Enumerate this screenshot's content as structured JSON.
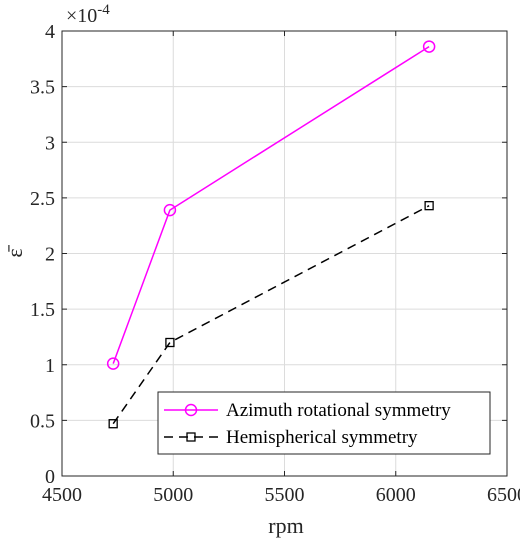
{
  "chart_data": {
    "type": "line",
    "title": "",
    "xlabel": "rpm",
    "ylabel": "ε̄",
    "y_exponent_label": "×10",
    "y_exponent_power": "-4",
    "xlim": [
      4500,
      6500
    ],
    "ylim": [
      0,
      4
    ],
    "xticks": [
      4500,
      5000,
      5500,
      6000,
      6500
    ],
    "yticks": [
      0,
      0.5,
      1,
      1.5,
      2,
      2.5,
      3,
      3.5,
      4
    ],
    "xtick_labels": [
      "4500",
      "5000",
      "5500",
      "6000",
      "6500"
    ],
    "ytick_labels": [
      "0",
      "0.5",
      "1",
      "1.5",
      "2",
      "2.5",
      "3",
      "3.5",
      "4"
    ],
    "grid": true,
    "legend_position": "bottom-right",
    "series": [
      {
        "name": "Azimuth rotational symmetry",
        "x": [
          4730,
          4985,
          6150
        ],
        "y": [
          1.01,
          2.39,
          3.86
        ],
        "color": "#ff00ff",
        "line_style": "solid",
        "marker": "circle"
      },
      {
        "name": "Hemispherical symmetry",
        "x": [
          4730,
          4985,
          6150
        ],
        "y": [
          0.47,
          1.2,
          2.43
        ],
        "color": "#000000",
        "line_style": "dashed",
        "marker": "square"
      }
    ]
  }
}
